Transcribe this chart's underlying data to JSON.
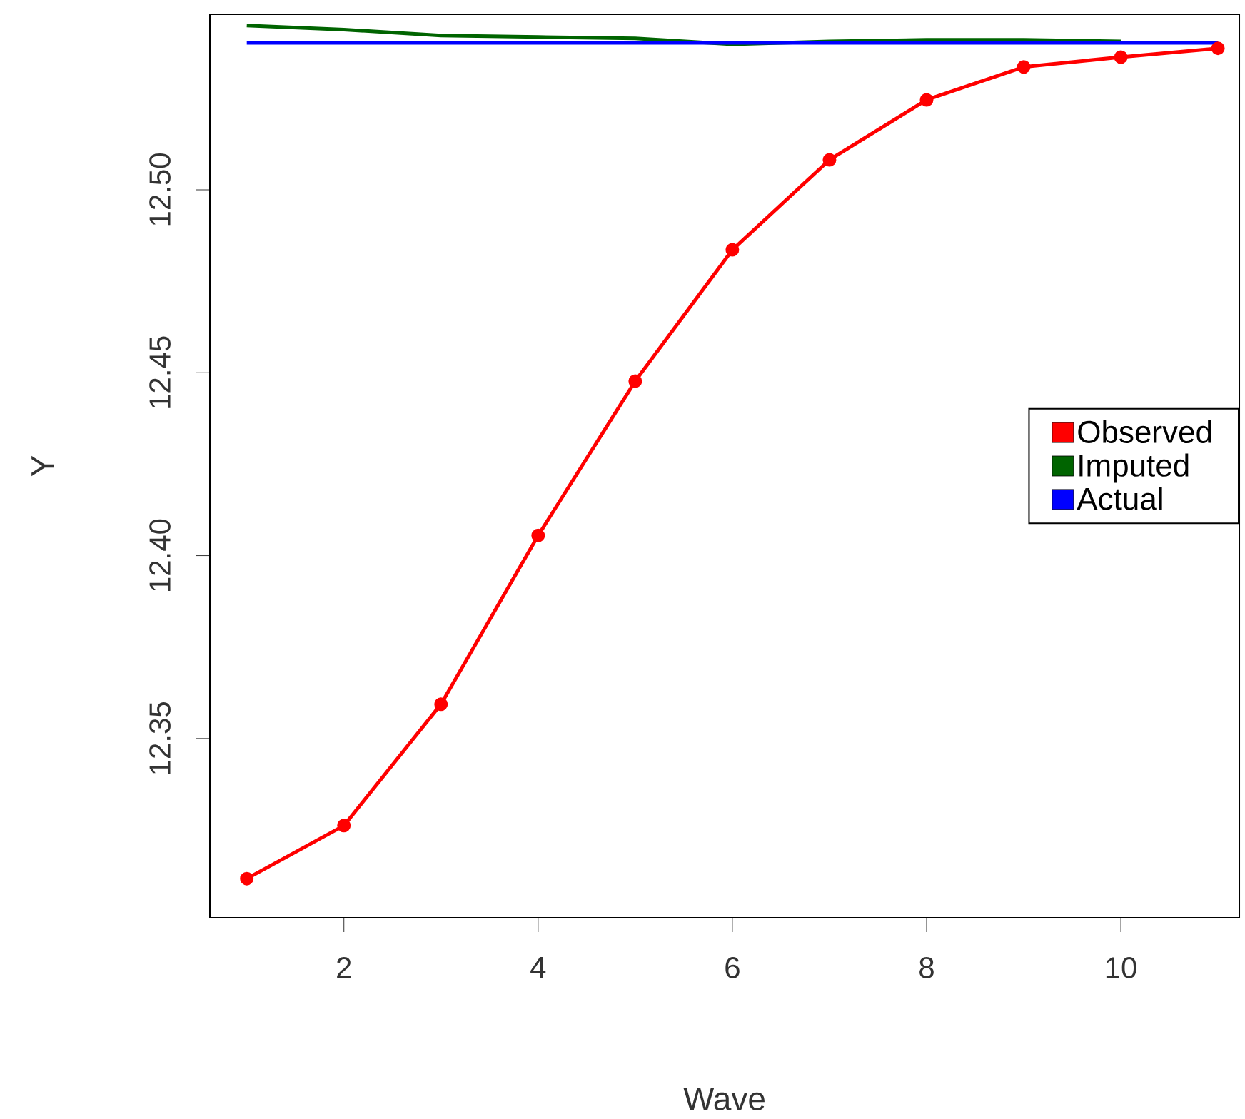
{
  "chart_data": {
    "type": "line",
    "xlabel": "Wave",
    "ylabel": "Y",
    "x": [
      1,
      2,
      3,
      4,
      5,
      6,
      7,
      8,
      9,
      10,
      11
    ],
    "series": [
      {
        "name": "Observed",
        "color": "#ff0000",
        "marker": "circle",
        "values": [
          12.3117,
          12.3262,
          12.3594,
          12.4055,
          12.4477,
          12.4836,
          12.5082,
          12.5246,
          12.5336,
          12.5363,
          12.5387
        ]
      },
      {
        "name": "Imputed",
        "color": "#006400",
        "values": [
          12.5449,
          12.5438,
          12.5422,
          12.5418,
          12.5414,
          12.5398,
          12.5406,
          12.541,
          12.541,
          12.5406,
          null
        ]
      },
      {
        "name": "Actual",
        "color": "#0000ff",
        "values": [
          12.5402,
          12.5402,
          12.5402,
          12.5402,
          12.5402,
          12.5402,
          12.5402,
          12.5402,
          12.5402,
          12.5402,
          12.5402
        ]
      }
    ],
    "xlim": [
      0.62,
      11.22
    ],
    "ylim": [
      12.301,
      12.548
    ],
    "xticks": [
      2,
      4,
      6,
      8,
      10
    ],
    "yticks": [
      {
        "value": 12.35,
        "label": "12.35"
      },
      {
        "value": 12.4,
        "label": "12.40"
      },
      {
        "value": 12.45,
        "label": "12.45"
      },
      {
        "value": 12.5,
        "label": "12.50"
      }
    ],
    "legend": "right",
    "grid": false,
    "line_style": "solid"
  }
}
